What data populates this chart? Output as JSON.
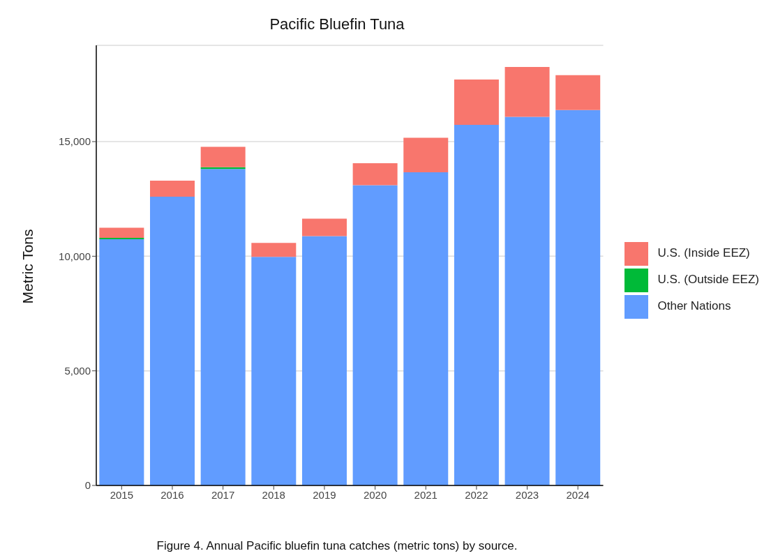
{
  "chart_data": {
    "type": "bar",
    "title": "Pacific Bluefin Tuna",
    "ylabel": "Metric Tons",
    "categories": [
      "2015",
      "2016",
      "2017",
      "2018",
      "2019",
      "2020",
      "2021",
      "2022",
      "2023",
      "2024"
    ],
    "series": [
      {
        "name": "Other Nations",
        "color": "#619cff",
        "values": [
          10740,
          12600,
          13810,
          9970,
          10880,
          13100,
          13660,
          15730,
          16080,
          16380
        ]
      },
      {
        "name": "U.S. (Outside EEZ)",
        "color": "#00ba38",
        "values": [
          60,
          0,
          70,
          0,
          0,
          0,
          0,
          0,
          0,
          0
        ]
      },
      {
        "name": "U.S. (Inside EEZ)",
        "color": "#f8766d",
        "values": [
          440,
          700,
          890,
          610,
          760,
          960,
          1510,
          1980,
          2180,
          1520
        ]
      }
    ],
    "stacked": true,
    "ylim": [
      0,
      19200
    ],
    "yticks": [
      {
        "value": 0,
        "label": "0"
      },
      {
        "value": 5000,
        "label": "5,000"
      },
      {
        "value": 10000,
        "label": "10,000"
      },
      {
        "value": 15000,
        "label": "15,000"
      }
    ],
    "grid": "y",
    "legend": "right",
    "annotations": [
      "Figure 4. Annual Pacific bluefin tuna catches (metric tons) by source."
    ]
  }
}
